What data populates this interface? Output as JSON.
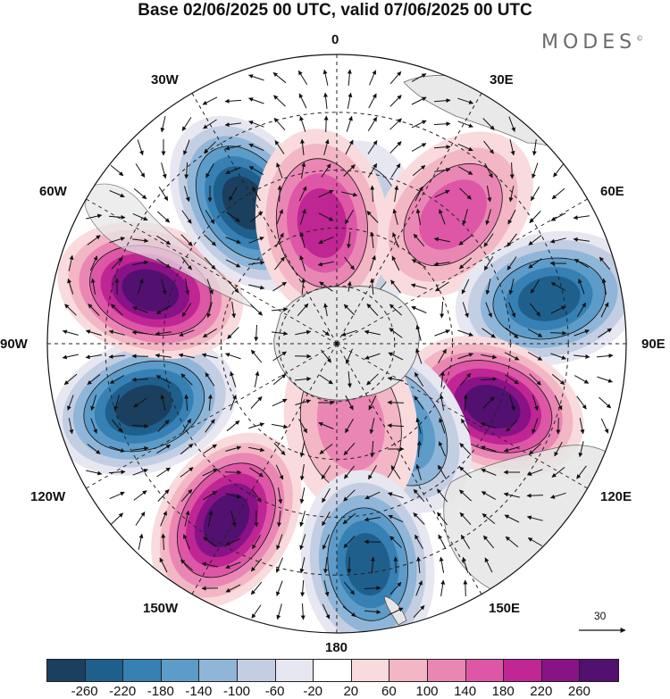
{
  "title": "Base 02/06/2025 00 UTC, valid 07/06/2025 00 UTC",
  "brand": "MODES",
  "brand_mark": "©",
  "longitude_labels": {
    "l0": "0",
    "l30e": "30E",
    "l60e": "60E",
    "l90e": "90E",
    "l120e": "120E",
    "l150e": "150E",
    "l180": "180",
    "l150w": "150W",
    "l120w": "120W",
    "l90w": "90W",
    "l60w": "60W",
    "l30w": "30W"
  },
  "vector_scale": {
    "value": "30"
  },
  "colorbar": {
    "colors": [
      "#1b3f5f",
      "#1f5f8c",
      "#3680b4",
      "#5d9cc8",
      "#8fb6d8",
      "#c4cee3",
      "#e6e7f1",
      "#ffffff",
      "#f9dbdd",
      "#f3b6c4",
      "#ea86b3",
      "#dd57a6",
      "#bf2593",
      "#8a1287",
      "#521070"
    ],
    "ticks": [
      "-260",
      "-220",
      "-180",
      "-140",
      "-100",
      "-60",
      "-20",
      "20",
      "60",
      "100",
      "140",
      "180",
      "220",
      "260"
    ]
  },
  "map": {
    "projection": "south polar stereographic",
    "field": "streamfunction anomaly with wind vectors",
    "anomalies": [
      {
        "sign": "negative",
        "level": -100,
        "lon": 8,
        "colat": 0.38
      },
      {
        "sign": "positive",
        "level": 140,
        "lon": 42,
        "colat": 0.6
      },
      {
        "sign": "negative",
        "level": -220,
        "lon": 78,
        "colat": 0.75
      },
      {
        "sign": "positive",
        "level": 260,
        "lon": 112,
        "colat": 0.58
      },
      {
        "sign": "negative",
        "level": -180,
        "lon": 145,
        "colat": 0.35
      },
      {
        "sign": "positive",
        "level": 100,
        "lon": 170,
        "colat": 0.28
      },
      {
        "sign": "negative",
        "level": -220,
        "lon": 172,
        "colat": 0.77
      },
      {
        "sign": "positive",
        "level": 260,
        "lon": -148,
        "colat": 0.72
      },
      {
        "sign": "negative",
        "level": -260,
        "lon": -108,
        "colat": 0.7
      },
      {
        "sign": "positive",
        "level": 260,
        "lon": -74,
        "colat": 0.67
      },
      {
        "sign": "negative",
        "level": -260,
        "lon": -33,
        "colat": 0.58
      },
      {
        "sign": "positive",
        "level": 180,
        "lon": -7,
        "colat": 0.42
      }
    ]
  }
}
